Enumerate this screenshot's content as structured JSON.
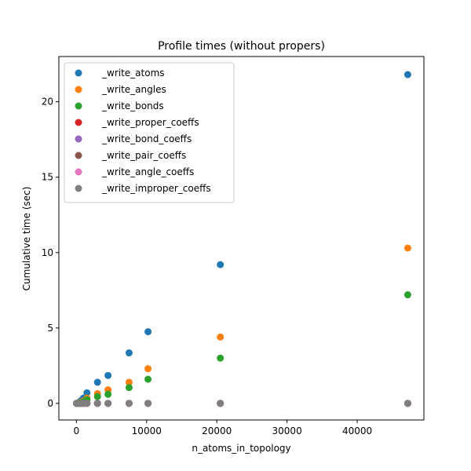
{
  "chart_data": {
    "type": "scatter",
    "title": "Profile times (without propers)",
    "xlabel": "n_atoms_in_topology",
    "ylabel": "Cumulative time (sec)",
    "xlim": [
      -2500,
      49500
    ],
    "ylim": [
      -1.1,
      23.0
    ],
    "xticks": [
      0,
      10000,
      20000,
      30000,
      40000
    ],
    "yticks": [
      0,
      5,
      10,
      15,
      20
    ],
    "grid": false,
    "legend_position": "upper-left",
    "x": [
      10,
      50,
      100,
      200,
      300,
      500,
      700,
      1000,
      1500,
      3000,
      4500,
      7500,
      10200,
      20500,
      47200
    ],
    "series": [
      {
        "name": "_write_atoms",
        "color": "#1f77b4",
        "values": [
          0.0,
          0.0,
          0.01,
          0.02,
          0.05,
          0.1,
          0.2,
          0.35,
          0.7,
          1.4,
          1.85,
          3.35,
          4.75,
          9.2,
          21.8
        ]
      },
      {
        "name": "_write_angles",
        "color": "#ff7f0e",
        "values": [
          0.0,
          0.0,
          0.0,
          0.01,
          0.02,
          0.05,
          0.1,
          0.15,
          0.35,
          0.65,
          0.9,
          1.4,
          2.3,
          4.4,
          10.3
        ]
      },
      {
        "name": "_write_bonds",
        "color": "#2ca02c",
        "values": [
          0.0,
          0.0,
          0.0,
          0.01,
          0.02,
          0.03,
          0.06,
          0.1,
          0.25,
          0.45,
          0.6,
          1.05,
          1.6,
          3.0,
          7.2
        ]
      },
      {
        "name": "_write_proper_coeffs",
        "color": "#d62728",
        "values": [
          0,
          0,
          0,
          0,
          0,
          0,
          0,
          0,
          0,
          0,
          0,
          0,
          0,
          0,
          0
        ]
      },
      {
        "name": "_write_bond_coeffs",
        "color": "#9467bd",
        "values": [
          0,
          0,
          0,
          0,
          0,
          0,
          0,
          0,
          0,
          0,
          0,
          0,
          0,
          0,
          0
        ]
      },
      {
        "name": "_write_pair_coeffs",
        "color": "#8c564b",
        "values": [
          0,
          0,
          0,
          0,
          0,
          0,
          0,
          0,
          0,
          0,
          0,
          0,
          0,
          0,
          0
        ]
      },
      {
        "name": "_write_angle_coeffs",
        "color": "#e377c2",
        "values": [
          0,
          0,
          0,
          0,
          0,
          0,
          0,
          0,
          0,
          0,
          0,
          0,
          0,
          0,
          0
        ]
      },
      {
        "name": "_write_improper_coeffs",
        "color": "#7f7f7f",
        "values": [
          0,
          0,
          0,
          0,
          0,
          0,
          0,
          0,
          0,
          0,
          0,
          0,
          0,
          0,
          0
        ]
      }
    ]
  }
}
